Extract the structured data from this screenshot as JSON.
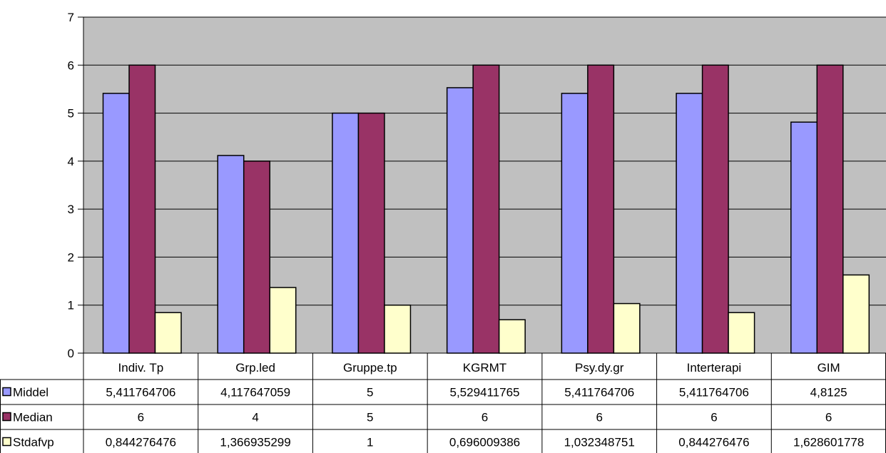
{
  "chart_data": {
    "type": "bar",
    "categories": [
      "Indiv. Tp",
      "Grp.led",
      "Gruppe.tp",
      "KGRMT",
      "Psy.dy.gr",
      "Interterapi",
      "GIM"
    ],
    "series": [
      {
        "name": "Middel",
        "color": "#9999ff",
        "values": [
          5.411764706,
          4.117647059,
          5,
          5.529411765,
          5.411764706,
          5.411764706,
          4.8125
        ],
        "labels": [
          "5,411764706",
          "4,117647059",
          "5",
          "5,529411765",
          "5,411764706",
          "5,411764706",
          "4,8125"
        ]
      },
      {
        "name": "Median",
        "color": "#993366",
        "values": [
          6,
          4,
          5,
          6,
          6,
          6,
          6
        ],
        "labels": [
          "6",
          "4",
          "5",
          "6",
          "6",
          "6",
          "6"
        ]
      },
      {
        "name": "Stdafvp",
        "color": "#ffffcc",
        "values": [
          0.844276476,
          1.366935299,
          1,
          0.696009386,
          1.032348751,
          0.844276476,
          1.628601778
        ],
        "labels": [
          "0,844276476",
          "1,366935299",
          "1",
          "0,696009386",
          "1,032348751",
          "0,844276476",
          "1,628601778"
        ]
      }
    ],
    "y_ticks": [
      "0",
      "1",
      "2",
      "3",
      "4",
      "5",
      "6",
      "7"
    ],
    "ylim": [
      0,
      7
    ],
    "plot_background": "#c0c0c0",
    "grid": true,
    "legend_placement": "data-table"
  }
}
